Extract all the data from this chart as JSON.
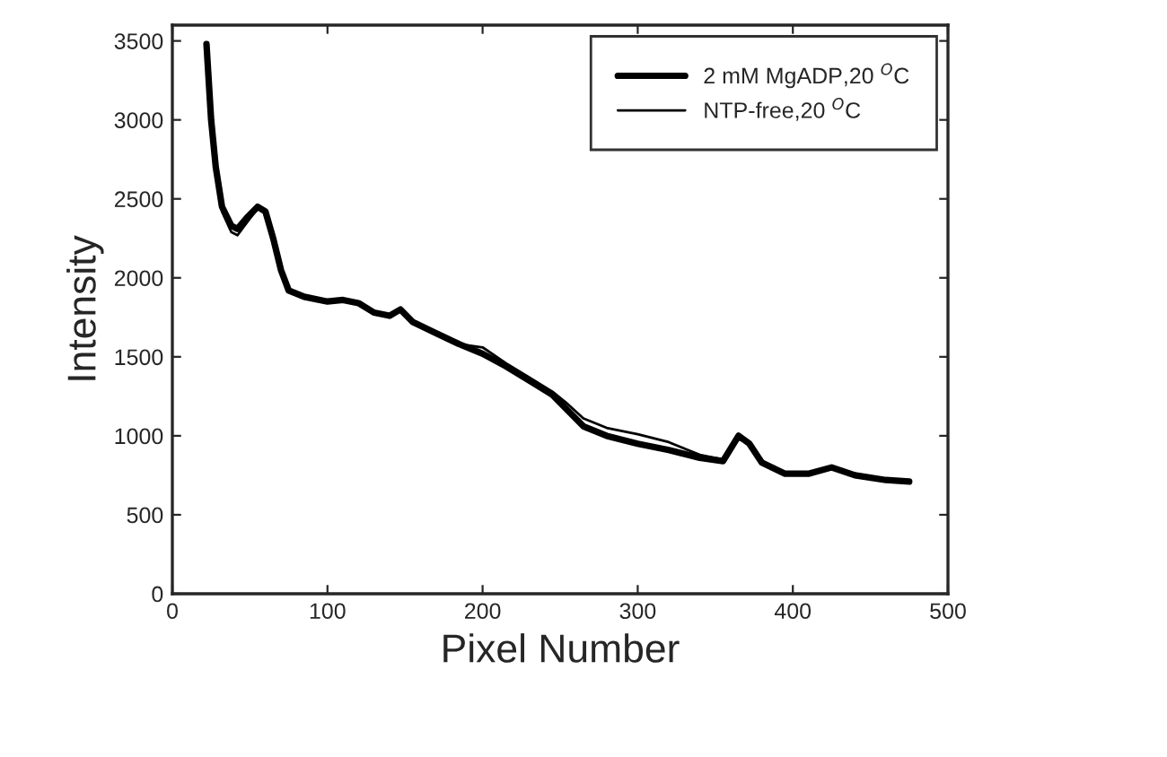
{
  "chart_data": {
    "type": "line",
    "xlabel": "Pixel Number",
    "ylabel": "Intensity",
    "x": [
      22,
      25,
      28,
      32,
      38,
      42,
      48,
      55,
      60,
      65,
      70,
      75,
      85,
      100,
      110,
      120,
      130,
      140,
      147,
      155,
      170,
      185,
      200,
      215,
      230,
      245,
      255,
      265,
      280,
      300,
      320,
      340,
      355,
      365,
      372,
      380,
      395,
      410,
      425,
      440,
      460,
      475
    ],
    "series": [
      {
        "name": "2 mM MgADP,20 $^{O}$C",
        "color": "#000000",
        "values": [
          3480,
          3000,
          2700,
          2450,
          2330,
          2310,
          2380,
          2450,
          2420,
          2250,
          2050,
          1920,
          1880,
          1850,
          1860,
          1840,
          1780,
          1760,
          1800,
          1720,
          1650,
          1580,
          1520,
          1440,
          1350,
          1260,
          1160,
          1060,
          1000,
          950,
          910,
          860,
          840,
          1000,
          950,
          830,
          760,
          760,
          800,
          750,
          720,
          710
        ]
      },
      {
        "name": "NTP-free,20 $^{O}$C",
        "color": "#000000",
        "values": [
          3480,
          3000,
          2680,
          2420,
          2290,
          2270,
          2350,
          2440,
          2410,
          2240,
          2040,
          1910,
          1870,
          1850,
          1860,
          1830,
          1770,
          1760,
          1790,
          1710,
          1640,
          1580,
          1560,
          1460,
          1370,
          1280,
          1200,
          1110,
          1050,
          1010,
          960,
          880,
          850,
          980,
          950,
          840,
          770,
          760,
          790,
          760,
          720,
          700
        ]
      }
    ],
    "xlim": [
      0,
      500
    ],
    "xticks": [
      0,
      100,
      200,
      300,
      400,
      500
    ],
    "ylim": [
      0,
      3600
    ],
    "yticks": [
      0,
      500,
      1000,
      1500,
      2000,
      2500,
      3000,
      3500
    ],
    "grid": false,
    "legend": "top right",
    "marker": "none",
    "line_style": "solid"
  }
}
